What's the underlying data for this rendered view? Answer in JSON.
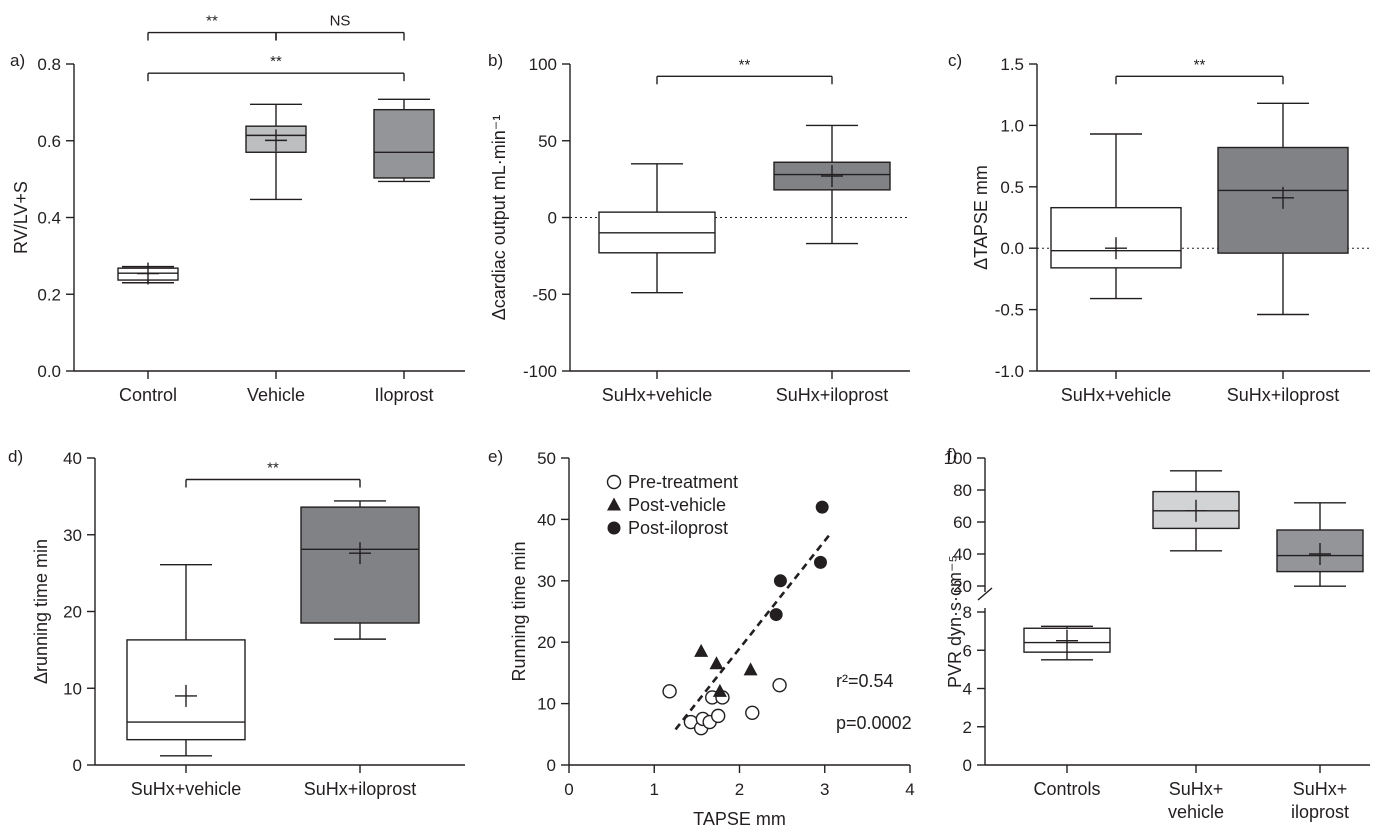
{
  "chart_data": [
    {
      "panel": "a)",
      "type": "box",
      "ylabel": "RV/LV+S",
      "ylim": [
        0.0,
        0.8
      ],
      "yticks": [
        "0.0",
        "0.2",
        "0.4",
        "0.6",
        "0.8"
      ],
      "categories": [
        "Control",
        "Vehicle",
        "Iloprost"
      ],
      "boxes": [
        {
          "min": 0.23,
          "q1": 0.237,
          "median": 0.255,
          "q3": 0.268,
          "max": 0.272,
          "mean": 0.254,
          "color": "#ffffff"
        },
        {
          "min": 0.447,
          "q1": 0.57,
          "median": 0.614,
          "q3": 0.638,
          "max": 0.695,
          "mean": 0.601,
          "color": "#bcbec0"
        },
        {
          "min": 0.494,
          "q1": 0.503,
          "median": 0.57,
          "q3": 0.681,
          "max": 0.708,
          "mean": null,
          "color": "#939598"
        }
      ],
      "brackets": [
        {
          "from": 0,
          "to": 1,
          "label": "**",
          "y": 0.882
        },
        {
          "from": 1,
          "to": 2,
          "label": "NS",
          "y": 0.882
        },
        {
          "from": 0,
          "to": 2,
          "label": "**",
          "y": 0.776
        }
      ]
    },
    {
      "panel": "b)",
      "type": "box",
      "ylabel": "Δcardiac output mL·min⁻¹",
      "ylim": [
        -100,
        100
      ],
      "yticks": [
        "-100",
        "-50",
        "0",
        "50",
        "100"
      ],
      "categories": [
        "SuHx+vehicle",
        "SuHx+iloprost"
      ],
      "dotted_zero": true,
      "boxes": [
        {
          "min": -49,
          "q1": -23,
          "median": -10,
          "q3": 3.5,
          "max": 35,
          "mean": null,
          "color": "#ffffff"
        },
        {
          "min": -17,
          "q1": 18,
          "median": 28,
          "q3": 36,
          "max": 60,
          "mean": 27,
          "color": "#808285"
        }
      ],
      "brackets": [
        {
          "from": 0,
          "to": 1,
          "label": "**",
          "y": 92
        }
      ]
    },
    {
      "panel": "c)",
      "type": "box",
      "ylabel": "ΔTAPSE mm",
      "ylim": [
        -1.0,
        1.5
      ],
      "yticks": [
        "-1.0",
        "-0.5",
        "0.0",
        "0.5",
        "1.0",
        "1.5"
      ],
      "categories": [
        "SuHx+vehicle",
        "SuHx+iloprost"
      ],
      "dotted_zero": true,
      "boxes": [
        {
          "min": -0.41,
          "q1": -0.16,
          "median": -0.02,
          "q3": 0.33,
          "max": 0.93,
          "mean": 0.0,
          "color": "#ffffff"
        },
        {
          "min": -0.54,
          "q1": -0.04,
          "median": 0.47,
          "q3": 0.82,
          "max": 1.18,
          "mean": 0.41,
          "color": "#808285"
        }
      ],
      "brackets": [
        {
          "from": 0,
          "to": 1,
          "label": "**",
          "y": 1.4
        }
      ]
    },
    {
      "panel": "d)",
      "type": "box",
      "ylabel": "Δrunning time min",
      "ylim": [
        0,
        40
      ],
      "yticks": [
        "0",
        "10",
        "20",
        "30",
        "40"
      ],
      "categories": [
        "SuHx+vehicle",
        "SuHx+iloprost"
      ],
      "boxes": [
        {
          "min": 1.2,
          "q1": 3.3,
          "median": 5.6,
          "q3": 16.3,
          "max": 26.1,
          "mean": 9.0,
          "color": "#ffffff"
        },
        {
          "min": 16.4,
          "q1": 18.5,
          "median": 28.1,
          "q3": 33.6,
          "max": 34.4,
          "mean": 27.6,
          "color": "#808285"
        }
      ],
      "brackets": [
        {
          "from": 0,
          "to": 1,
          "label": "**",
          "y": 37.2
        }
      ]
    },
    {
      "panel": "e)",
      "type": "scatter",
      "xlabel": "TAPSE mm",
      "ylabel": "Running time min",
      "xlim": [
        0,
        4
      ],
      "ylim": [
        0,
        50
      ],
      "xticks": [
        "0",
        "1",
        "2",
        "3",
        "4"
      ],
      "yticks": [
        "0",
        "10",
        "20",
        "30",
        "40",
        "50"
      ],
      "series": [
        {
          "name": "Pre-treatment",
          "marker": "open-circle",
          "points": [
            [
              1.18,
              12.0
            ],
            [
              1.43,
              7.0
            ],
            [
              1.55,
              6.0
            ],
            [
              1.57,
              7.5
            ],
            [
              1.65,
              7.0
            ],
            [
              1.68,
              11.0
            ],
            [
              1.75,
              8.0
            ],
            [
              1.8,
              11.0
            ],
            [
              2.15,
              8.5
            ],
            [
              2.47,
              13.0
            ]
          ]
        },
        {
          "name": "Post-vehicle",
          "marker": "filled-triangle",
          "points": [
            [
              1.55,
              18.5
            ],
            [
              1.73,
              16.5
            ],
            [
              1.77,
              12.0
            ],
            [
              2.13,
              15.5
            ]
          ]
        },
        {
          "name": "Post-iloprost",
          "marker": "filled-circle",
          "points": [
            [
              2.43,
              24.5
            ],
            [
              2.48,
              30.0
            ],
            [
              2.95,
              33.0
            ],
            [
              2.97,
              42.0
            ]
          ]
        }
      ],
      "fit_line": {
        "x": [
          1.25,
          3.05
        ],
        "y": [
          5.8,
          37.4
        ],
        "style": "dashed"
      },
      "annotations": [
        "r²=0.54",
        "p=0.0002"
      ],
      "legend_position": "top-left"
    },
    {
      "panel": "f)",
      "type": "box",
      "ylabel": "PVR dyn·s·cm⁻⁵",
      "axis_break": true,
      "upper_ylim": [
        20,
        100
      ],
      "upper_yticks": [
        "20",
        "40",
        "60",
        "80",
        "100"
      ],
      "lower_ylim": [
        0,
        8
      ],
      "lower_yticks": [
        "0",
        "2",
        "4",
        "6",
        "8"
      ],
      "categories": [
        "Controls",
        "SuHx+\nvehicle",
        "SuHx+\niloprost"
      ],
      "boxes": [
        {
          "min": 5.5,
          "q1": 5.9,
          "median": 6.4,
          "q3": 7.15,
          "max": 7.25,
          "mean": 6.5,
          "color": "#ffffff"
        },
        {
          "min": 42,
          "q1": 56,
          "median": 67,
          "q3": 79,
          "max": 92,
          "mean": 67,
          "color": "#d1d3d4"
        },
        {
          "min": 18,
          "q1": 29,
          "median": 39,
          "q3": 55,
          "max": 72,
          "mean": 40,
          "color": "#939598"
        }
      ]
    }
  ]
}
